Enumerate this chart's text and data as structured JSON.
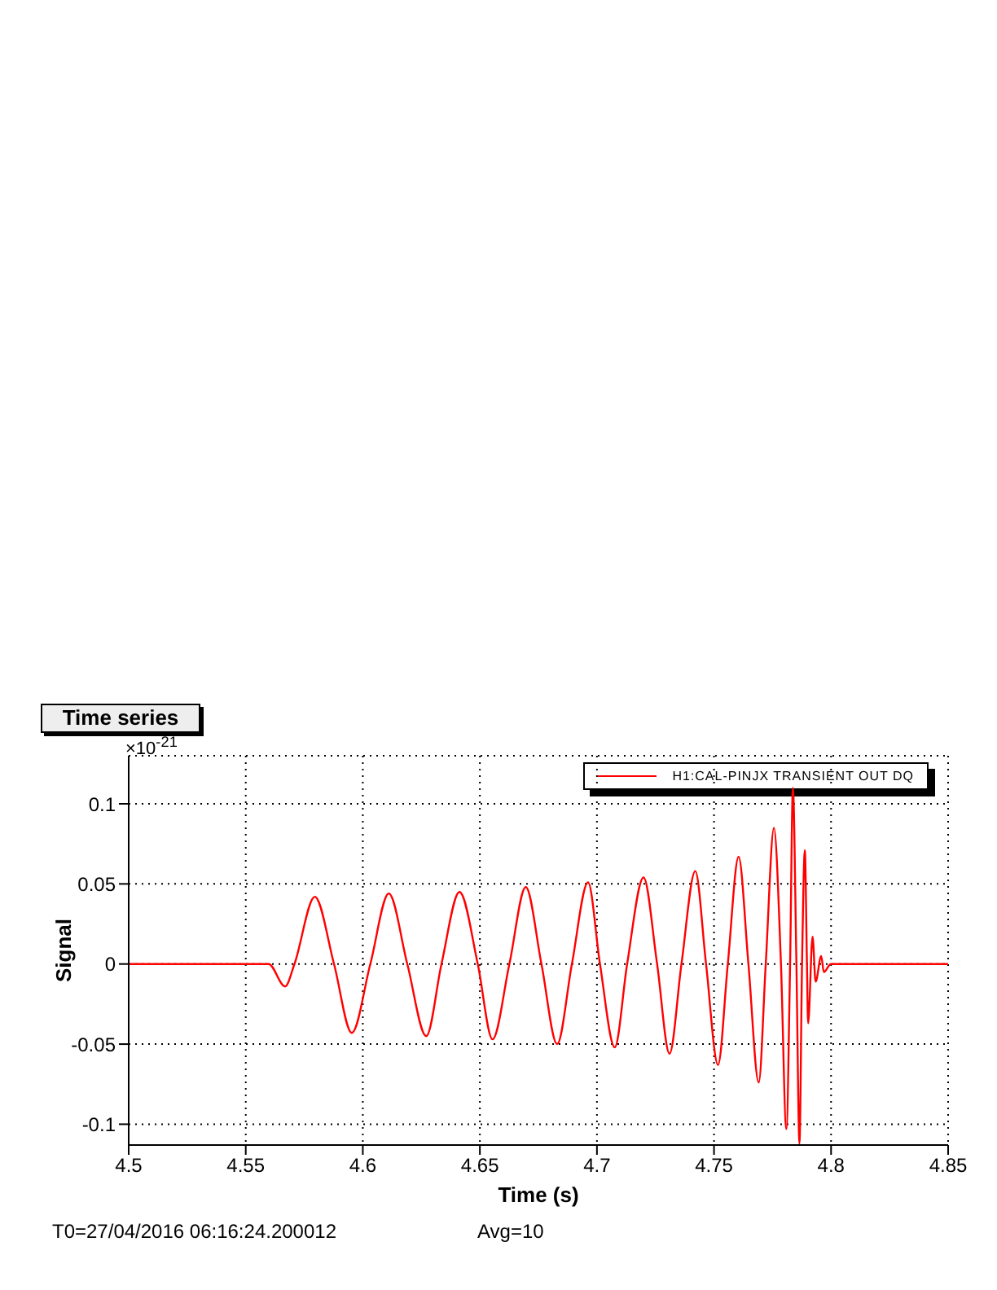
{
  "chart_data": {
    "type": "line",
    "title": "Time series",
    "xlabel": "Time (s)",
    "ylabel": "Signal",
    "annotations": [
      "×10$^{-21}$",
      "T0=27/04/2016 06:16:24.200012",
      "Avg=10"
    ],
    "xlim": [
      4.5,
      4.85
    ],
    "xticks": [
      4.5,
      4.55,
      4.6,
      4.65,
      4.7,
      4.75,
      4.8,
      4.85
    ],
    "ylim": [
      -0.113,
      0.13
    ],
    "yticks": [
      -0.1,
      -0.05,
      0,
      0.05,
      0.1
    ],
    "grid": true,
    "legend": "top right",
    "marker": "none",
    "line_style": "solid",
    "series": [
      {
        "name": "H1:CAL-PINJX TRANSIENT OUT DQ",
        "color": "#ff0000",
        "x": [
          4.5,
          4.5598,
          4.5668,
          4.5708,
          4.5795,
          4.5877,
          4.5953,
          4.6032,
          4.6111,
          4.619,
          4.6271,
          4.6336,
          4.6413,
          4.6491,
          4.6554,
          4.6626,
          4.6696,
          4.6763,
          4.683,
          4.6893,
          4.6962,
          4.7013,
          4.7076,
          4.7129,
          4.7199,
          4.7257,
          4.731,
          4.7361,
          4.742,
          4.7466,
          4.7517,
          4.7559,
          4.7605,
          4.7647,
          4.7691,
          4.7721,
          4.7756,
          4.7786,
          4.7809,
          4.7825,
          4.7837,
          4.7852,
          4.7865,
          4.7876,
          4.7888,
          4.7897,
          4.7902,
          4.7921,
          4.7934,
          4.7958,
          4.7969,
          4.7999,
          4.85
        ],
        "values": [
          0,
          0,
          -0.014,
          0,
          0.042,
          0,
          -0.043,
          0,
          0.044,
          0,
          -0.045,
          0,
          0.045,
          0,
          -0.047,
          0,
          0.048,
          0,
          -0.05,
          0,
          0.051,
          0,
          -0.052,
          0,
          0.054,
          0,
          -0.056,
          0,
          0.058,
          0,
          -0.063,
          0,
          0.067,
          0,
          -0.074,
          0,
          0.085,
          0,
          -0.103,
          0,
          0.11,
          0,
          -0.112,
          0,
          0.071,
          0,
          -0.037,
          0.017,
          -0.011,
          0.005,
          -0.005,
          0,
          0
        ]
      }
    ]
  }
}
